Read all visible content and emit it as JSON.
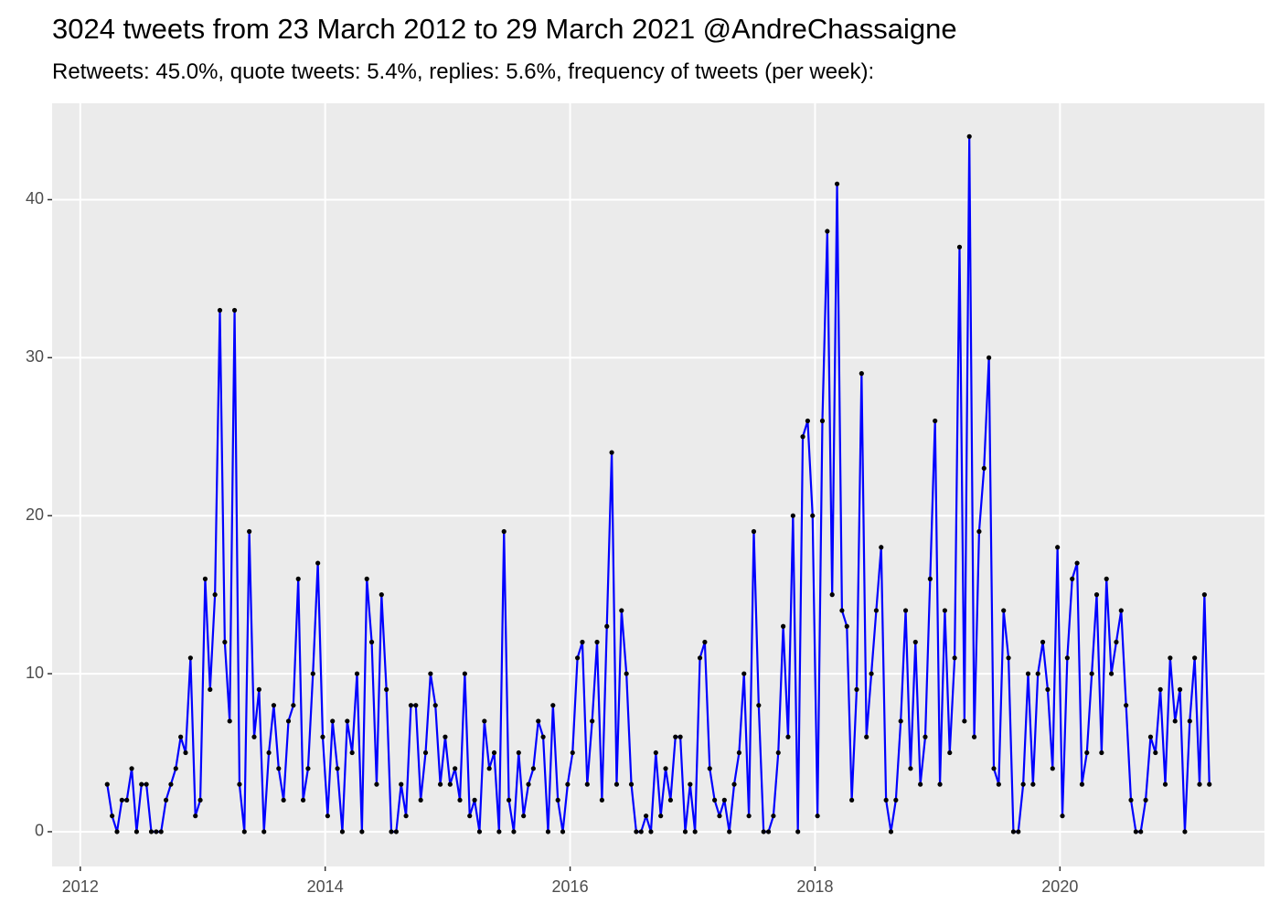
{
  "chart_data": {
    "type": "line",
    "title": "3024 tweets from 23 March 2012 to 29 March 2021 @AndreChassaigne",
    "subtitle": "Retweets: 45.0%, quote tweets: 5.4%, replies: 5.6%, frequency of tweets (per week):",
    "color": "#0000ff",
    "point_color": "#000000",
    "grid": true,
    "xlim": [
      2011.77,
      2021.67
    ],
    "ylim": [
      -2.2,
      46.1
    ],
    "xticks": [
      2012,
      2014,
      2016,
      2018,
      2020
    ],
    "yticks": [
      0,
      10,
      20,
      30,
      40
    ],
    "x": [
      2012.22,
      2012.26,
      2012.3,
      2012.34,
      2012.38,
      2012.42,
      2012.46,
      2012.5,
      2012.54,
      2012.58,
      2012.62,
      2012.66,
      2012.7,
      2012.74,
      2012.78,
      2012.82,
      2012.86,
      2012.9,
      2012.94,
      2012.98,
      2013.02,
      2013.06,
      2013.1,
      2013.14,
      2013.18,
      2013.22,
      2013.26,
      2013.3,
      2013.34,
      2013.38,
      2013.42,
      2013.46,
      2013.5,
      2013.54,
      2013.58,
      2013.62,
      2013.66,
      2013.7,
      2013.74,
      2013.78,
      2013.82,
      2013.86,
      2013.9,
      2013.94,
      2013.98,
      2014.02,
      2014.06,
      2014.1,
      2014.14,
      2014.18,
      2014.22,
      2014.26,
      2014.3,
      2014.34,
      2014.38,
      2014.42,
      2014.46,
      2014.5,
      2014.54,
      2014.58,
      2014.62,
      2014.66,
      2014.7,
      2014.74,
      2014.78,
      2014.82,
      2014.86,
      2014.9,
      2014.94,
      2014.98,
      2015.02,
      2015.06,
      2015.1,
      2015.14,
      2015.18,
      2015.22,
      2015.26,
      2015.3,
      2015.34,
      2015.38,
      2015.42,
      2015.46,
      2015.5,
      2015.54,
      2015.58,
      2015.62,
      2015.66,
      2015.7,
      2015.74,
      2015.78,
      2015.82,
      2015.86,
      2015.9,
      2015.94,
      2015.98,
      2016.02,
      2016.06,
      2016.1,
      2016.14,
      2016.18,
      2016.22,
      2016.26,
      2016.3,
      2016.34,
      2016.38,
      2016.42,
      2016.46,
      2016.5,
      2016.54,
      2016.58,
      2016.62,
      2016.66,
      2016.7,
      2016.74,
      2016.78,
      2016.82,
      2016.86,
      2016.9,
      2016.94,
      2016.98,
      2017.02,
      2017.06,
      2017.1,
      2017.14,
      2017.18,
      2017.22,
      2017.26,
      2017.3,
      2017.34,
      2017.38,
      2017.42,
      2017.46,
      2017.5,
      2017.54,
      2017.58,
      2017.62,
      2017.66,
      2017.7,
      2017.74,
      2017.78,
      2017.82,
      2017.86,
      2017.9,
      2017.94,
      2017.98,
      2018.02,
      2018.06,
      2018.1,
      2018.14,
      2018.18,
      2018.22,
      2018.26,
      2018.3,
      2018.34,
      2018.38,
      2018.42,
      2018.46,
      2018.5,
      2018.54,
      2018.58,
      2018.62,
      2018.66,
      2018.7,
      2018.74,
      2018.78,
      2018.82,
      2018.86,
      2018.9,
      2018.94,
      2018.98,
      2019.02,
      2019.06,
      2019.1,
      2019.14,
      2019.18,
      2019.22,
      2019.26,
      2019.3,
      2019.34,
      2019.38,
      2019.42,
      2019.46,
      2019.5,
      2019.54,
      2019.58,
      2019.62,
      2019.66,
      2019.7,
      2019.74,
      2019.78,
      2019.82,
      2019.86,
      2019.9,
      2019.94,
      2019.98,
      2020.02,
      2020.06,
      2020.1,
      2020.14,
      2020.18,
      2020.22,
      2020.26,
      2020.3,
      2020.34,
      2020.38,
      2020.42,
      2020.46,
      2020.5,
      2020.54,
      2020.58,
      2020.62,
      2020.66,
      2020.7,
      2020.74,
      2020.78,
      2020.82,
      2020.86,
      2020.9,
      2020.94,
      2020.98,
      2021.02,
      2021.06,
      2021.1,
      2021.14,
      2021.18,
      2021.22
    ],
    "values": [
      3,
      1,
      0,
      2,
      2,
      4,
      0,
      3,
      3,
      0,
      0,
      0,
      2,
      3,
      4,
      6,
      5,
      11,
      1,
      2,
      16,
      9,
      15,
      33,
      12,
      7,
      33,
      3,
      0,
      19,
      6,
      9,
      0,
      5,
      8,
      4,
      2,
      7,
      8,
      16,
      2,
      4,
      10,
      17,
      6,
      1,
      7,
      4,
      0,
      7,
      5,
      10,
      0,
      16,
      12,
      3,
      15,
      9,
      0,
      0,
      3,
      1,
      8,
      8,
      2,
      5,
      10,
      8,
      3,
      6,
      3,
      4,
      2,
      10,
      1,
      2,
      0,
      7,
      4,
      5,
      0,
      19,
      2,
      0,
      5,
      1,
      3,
      4,
      7,
      6,
      0,
      8,
      2,
      0,
      3,
      5,
      11,
      12,
      3,
      7,
      12,
      2,
      13,
      24,
      3,
      14,
      10,
      3,
      0,
      0,
      1,
      0,
      5,
      1,
      4,
      2,
      6,
      6,
      0,
      3,
      0,
      11,
      12,
      4,
      2,
      1,
      2,
      0,
      3,
      5,
      10,
      1,
      19,
      8,
      0,
      0,
      1,
      5,
      13,
      6,
      20,
      0,
      25,
      26,
      20,
      1,
      26,
      38,
      15,
      41,
      14,
      13,
      2,
      9,
      29,
      6,
      10,
      14,
      18,
      2,
      0,
      2,
      7,
      14,
      4,
      12,
      3,
      6,
      16,
      26,
      3,
      14,
      5,
      11,
      37,
      7,
      44,
      6,
      19,
      23,
      30,
      4,
      3,
      14,
      11,
      0,
      0,
      3,
      10,
      3,
      10,
      12,
      9,
      4,
      18,
      1,
      11,
      16,
      17,
      3,
      5,
      10,
      15,
      5,
      16,
      10,
      12,
      14,
      8,
      2,
      0,
      0,
      2,
      6,
      5,
      9,
      3,
      11,
      7,
      9,
      0,
      7,
      11,
      3,
      15,
      3
    ]
  }
}
